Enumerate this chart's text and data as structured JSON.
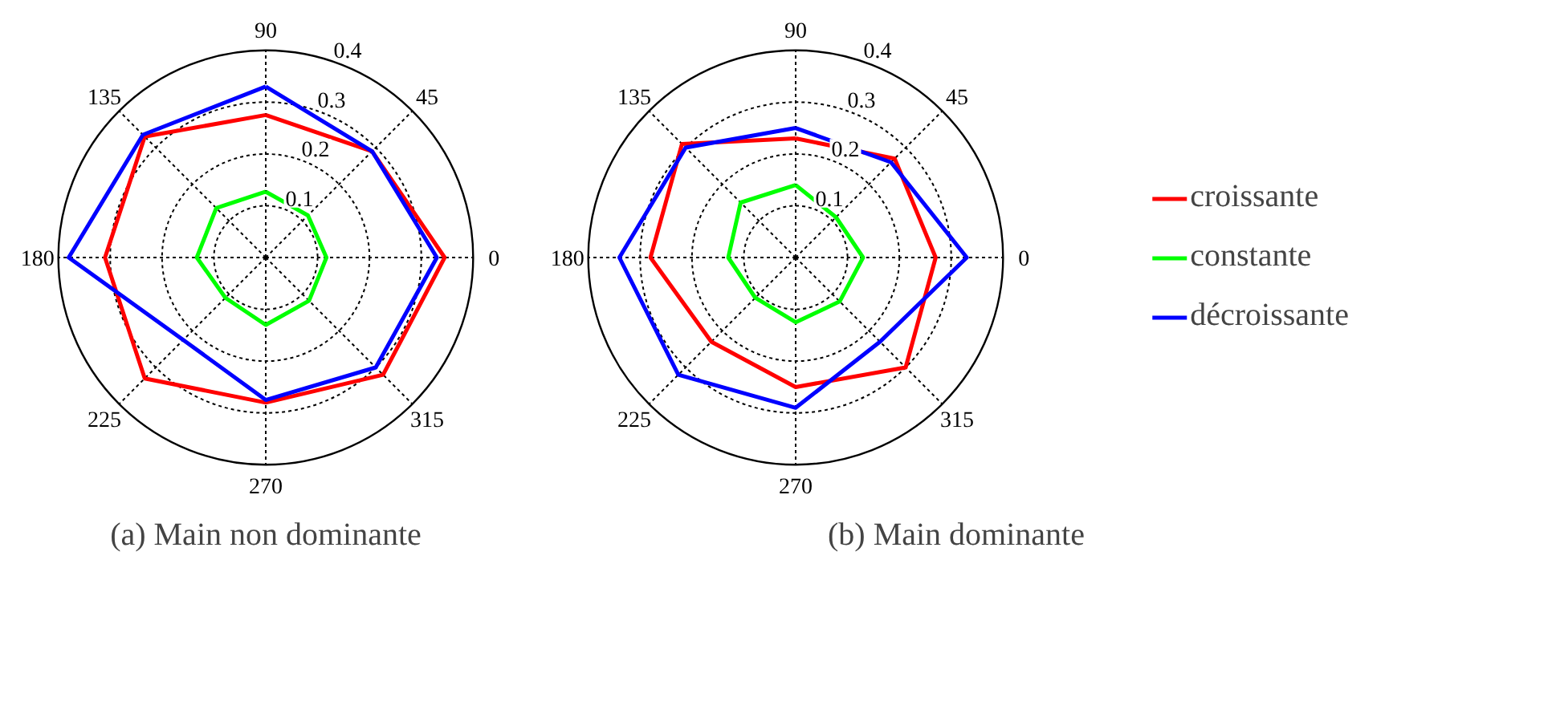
{
  "chart_data": [
    {
      "type": "radar",
      "categories": [
        "90",
        "45",
        "0",
        "315",
        "270",
        "225",
        "180",
        "135"
      ],
      "ylim": [
        0,
        0.4
      ],
      "yticks": [
        0.1,
        0.2,
        0.3,
        0.4
      ],
      "grid": true,
      "annotations": [
        "(a) Main non dominante"
      ],
      "series": [
        {
          "color": "#ff0000",
          "values": [
            0.275,
            0.29,
            0.345,
            0.32,
            0.28,
            0.33,
            0.31,
            0.33
          ]
        },
        {
          "color": "#00ff00",
          "values": [
            0.127,
            0.115,
            0.117,
            0.118,
            0.13,
            0.11,
            0.133,
            0.135
          ]
        },
        {
          "color": "#0000ff",
          "values": [
            0.33,
            0.29,
            0.33,
            0.3,
            0.275,
            0.225,
            0.38,
            0.335
          ]
        }
      ]
    },
    {
      "type": "radar",
      "categories": [
        "90",
        "45",
        "0",
        "315",
        "270",
        "225",
        "180",
        "135"
      ],
      "ylim": [
        0,
        0.4
      ],
      "yticks": [
        0.1,
        0.2,
        0.3,
        0.4
      ],
      "grid": true,
      "legend": "right",
      "annotations": [
        "(b) Main dominante"
      ],
      "series": [
        {
          "name": "croissante",
          "color": "#ff0000",
          "values": [
            0.23,
            0.27,
            0.27,
            0.3,
            0.25,
            0.23,
            0.28,
            0.31
          ]
        },
        {
          "name": "constante",
          "color": "#00ff00",
          "values": [
            0.14,
            0.11,
            0.13,
            0.12,
            0.125,
            0.11,
            0.13,
            0.15
          ]
        },
        {
          "name": "décroissante",
          "color": "#0000ff",
          "values": [
            0.25,
            0.26,
            0.33,
            0.23,
            0.29,
            0.32,
            0.34,
            0.3
          ]
        }
      ]
    }
  ]
}
